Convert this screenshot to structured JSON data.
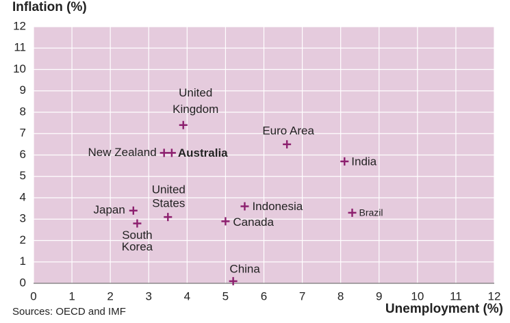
{
  "chart_data": {
    "type": "scatter",
    "y_title": "Inflation (%)",
    "x_title": "Unemployment (%)",
    "source": "Sources: OECD and IMF",
    "xlim": [
      0,
      12
    ],
    "ylim": [
      0,
      12
    ],
    "xticks": [
      0,
      1,
      2,
      3,
      4,
      5,
      6,
      7,
      8,
      9,
      10,
      11,
      12
    ],
    "yticks": [
      0,
      1,
      2,
      3,
      4,
      5,
      6,
      7,
      8,
      9,
      10,
      11,
      12
    ],
    "grid": true,
    "color": "#8c1f6e",
    "background": "#e5cbdd",
    "points": [
      {
        "label": [
          "United",
          "Kingdom"
        ],
        "x": 3.9,
        "y": 7.4
      },
      {
        "label": [
          "New Zealand"
        ],
        "x": 3.4,
        "y": 6.1
      },
      {
        "label": [
          "Australia"
        ],
        "x": 3.6,
        "y": 6.1,
        "highlight": true
      },
      {
        "label": [
          "Euro Area"
        ],
        "x": 6.6,
        "y": 6.5
      },
      {
        "label": [
          "India"
        ],
        "x": 8.1,
        "y": 5.7
      },
      {
        "label": [
          "Brazil"
        ],
        "x": 8.3,
        "y": 3.3
      },
      {
        "label": [
          "Indonesia"
        ],
        "x": 5.5,
        "y": 3.6
      },
      {
        "label": [
          "Canada"
        ],
        "x": 5.0,
        "y": 2.9
      },
      {
        "label": [
          "United",
          "States"
        ],
        "x": 3.5,
        "y": 3.1
      },
      {
        "label": [
          "Japan"
        ],
        "x": 2.6,
        "y": 3.4
      },
      {
        "label": [
          "South",
          "Korea"
        ],
        "x": 2.7,
        "y": 2.8
      },
      {
        "label": [
          "China"
        ],
        "x": 5.2,
        "y": 0.1
      }
    ]
  }
}
